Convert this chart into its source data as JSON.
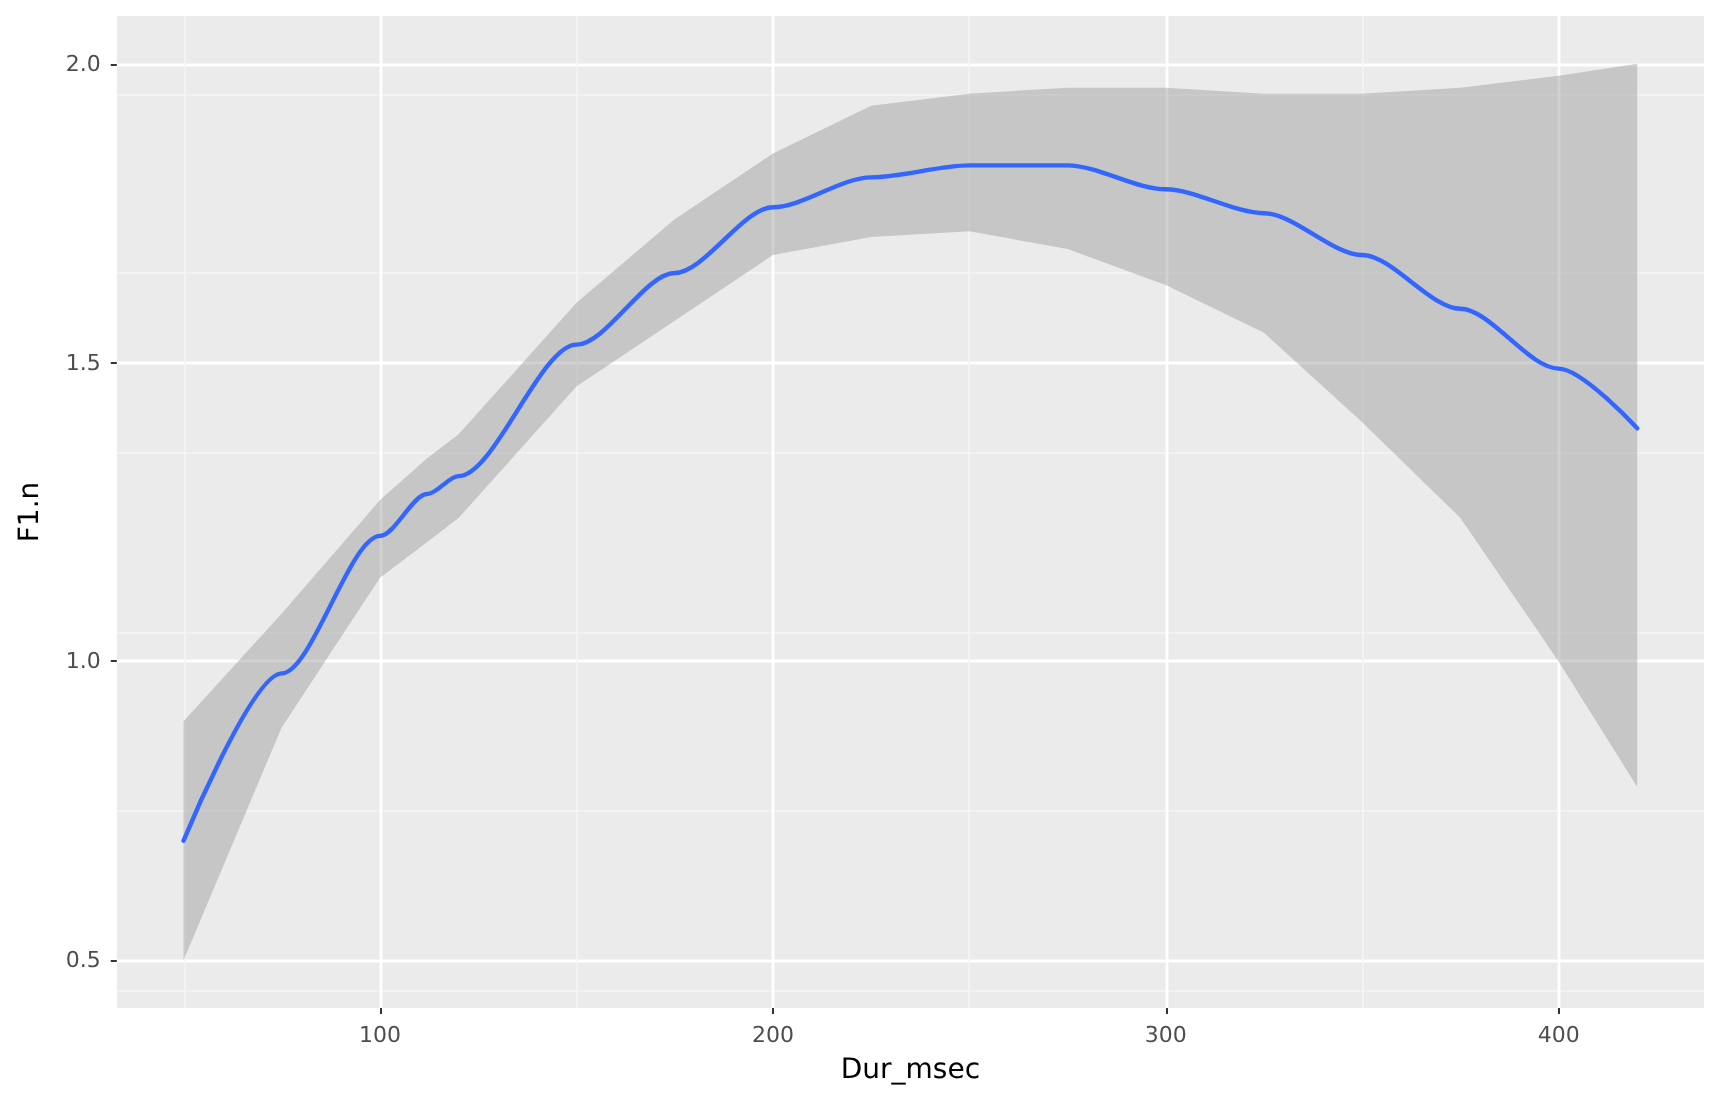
{
  "chart_data": {
    "type": "line",
    "xlabel": "Dur_msec",
    "ylabel": "F1.n",
    "x": [
      50,
      75,
      100,
      112,
      120,
      150,
      175,
      200,
      225,
      250,
      275,
      300,
      325,
      350,
      375,
      400,
      420
    ],
    "series": [
      {
        "color": "#3366ff",
        "values": [
          0.7,
          0.98,
          1.21,
          1.28,
          1.31,
          1.53,
          1.65,
          1.76,
          1.81,
          1.83,
          1.83,
          1.79,
          1.75,
          1.68,
          1.59,
          1.49,
          1.39
        ],
        "lower": [
          0.5,
          0.89,
          1.14,
          1.2,
          1.24,
          1.46,
          1.57,
          1.68,
          1.71,
          1.72,
          1.69,
          1.63,
          1.55,
          1.4,
          1.24,
          1.0,
          0.79
        ],
        "upper": [
          0.9,
          1.08,
          1.27,
          1.34,
          1.38,
          1.6,
          1.74,
          1.85,
          1.93,
          1.95,
          1.96,
          1.96,
          1.95,
          1.95,
          1.96,
          1.98,
          2.0
        ]
      }
    ],
    "xlim": [
      33,
      437
    ],
    "ylim": [
      0.42,
      2.08
    ],
    "xticks": [
      100,
      200,
      300,
      400
    ],
    "yticks": [
      0.5,
      {
        "value": 1,
        "label": "1.0"
      },
      1.5,
      {
        "value": 2,
        "label": "2.0"
      }
    ],
    "grid": true,
    "marker": "none",
    "line_style": "solid"
  }
}
